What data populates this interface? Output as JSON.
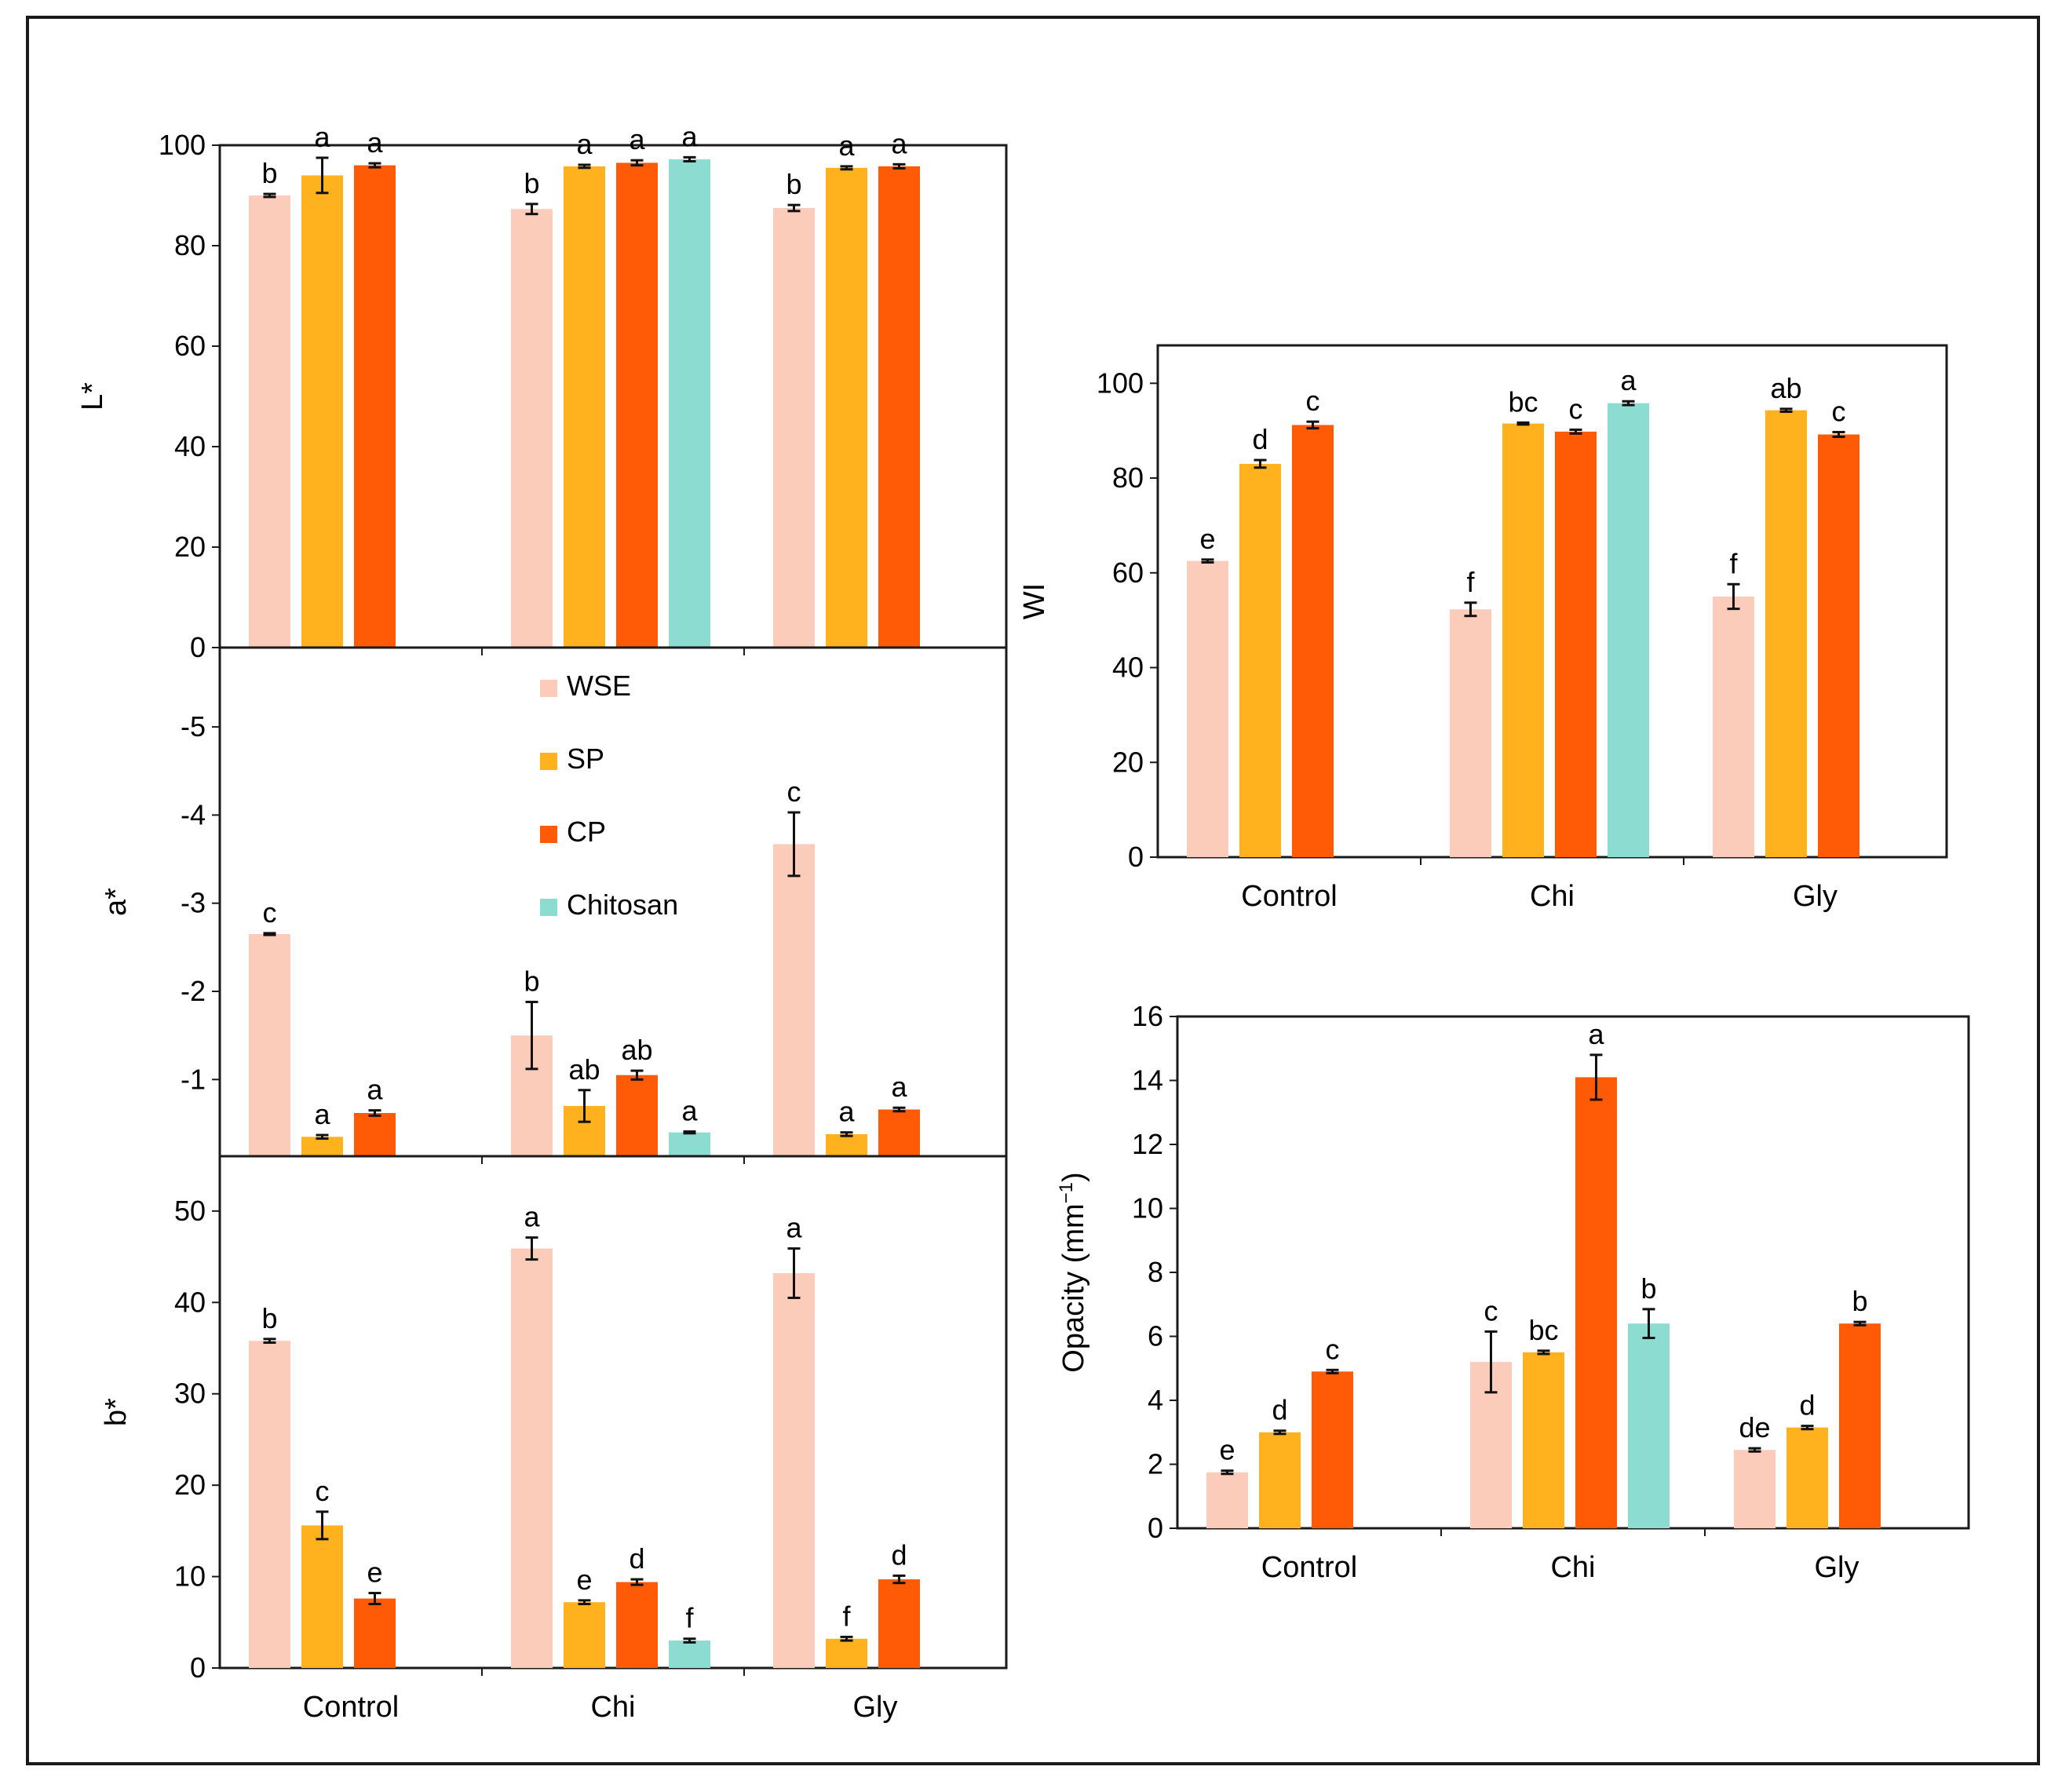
{
  "colors": {
    "WSE": "#fcccbb",
    "SP": "#ffb21e",
    "CP": "#ff5a05",
    "Chitosan": "#8ddcd2",
    "axis": "#1a1a1a"
  },
  "legend": [
    {
      "key": "WSE",
      "label": "WSE"
    },
    {
      "key": "SP",
      "label": "SP"
    },
    {
      "key": "CP",
      "label": "CP"
    },
    {
      "key": "Chitosan",
      "label": "Chitosan"
    }
  ],
  "chart_data": [
    {
      "id": "lstar",
      "type": "bar",
      "ylabel": "L*",
      "ylim": [
        0,
        100
      ],
      "yticks": [
        "0",
        "20",
        "40",
        "60",
        "80",
        "100"
      ],
      "categories": [],
      "groups": [
        {
          "name": "Control",
          "bars": [
            {
              "series": "WSE",
              "value": 90,
              "err": 0.3,
              "label": "b"
            },
            {
              "series": "SP",
              "value": 94,
              "err": 3.5,
              "label": "a"
            },
            {
              "series": "CP",
              "value": 96,
              "err": 0.4,
              "label": "a"
            }
          ]
        },
        {
          "name": "Chi",
          "bars": [
            {
              "series": "WSE",
              "value": 87.3,
              "err": 1,
              "label": "b"
            },
            {
              "series": "SP",
              "value": 95.8,
              "err": 0.3,
              "label": "a"
            },
            {
              "series": "CP",
              "value": 96.5,
              "err": 0.5,
              "label": "a"
            },
            {
              "series": "Chitosan",
              "value": 97.2,
              "err": 0.4,
              "label": "a"
            }
          ]
        },
        {
          "name": "Gly",
          "bars": [
            {
              "series": "WSE",
              "value": 87.5,
              "err": 0.6,
              "label": "b"
            },
            {
              "series": "SP",
              "value": 95.5,
              "err": 0.3,
              "label": "a"
            },
            {
              "series": "CP",
              "value": 95.8,
              "err": 0.4,
              "label": "a"
            }
          ]
        }
      ]
    },
    {
      "id": "astar",
      "type": "bar",
      "ylabel": "a*",
      "ylim": [
        -0.13,
        -5.9
      ],
      "yticks": [
        "-1",
        "-2",
        "-3",
        "-4",
        "-5"
      ],
      "categories": [],
      "groups": [
        {
          "name": "Control",
          "bars": [
            {
              "series": "WSE",
              "value": -2.65,
              "err": 0.01,
              "label": "c"
            },
            {
              "series": "SP",
              "value": -0.35,
              "err": 0.02,
              "label": "a"
            },
            {
              "series": "CP",
              "value": -0.62,
              "err": 0.03,
              "label": "a"
            }
          ]
        },
        {
          "name": "Chi",
          "bars": [
            {
              "series": "WSE",
              "value": -1.5,
              "err": 0.38,
              "label": "b"
            },
            {
              "series": "SP",
              "value": -0.7,
              "err": 0.18,
              "label": "ab"
            },
            {
              "series": "CP",
              "value": -1.05,
              "err": 0.05,
              "label": "ab"
            },
            {
              "series": "Chitosan",
              "value": -0.4,
              "err": 0.01,
              "label": "a"
            }
          ]
        },
        {
          "name": "Gly",
          "bars": [
            {
              "series": "WSE",
              "value": -3.67,
              "err": 0.36,
              "label": "c"
            },
            {
              "series": "SP",
              "value": -0.38,
              "err": 0.02,
              "label": "a"
            },
            {
              "series": "CP",
              "value": -0.66,
              "err": 0.02,
              "label": "a"
            }
          ]
        }
      ]
    },
    {
      "id": "bstar",
      "type": "bar",
      "ylabel": "b*",
      "ylim": [
        0,
        56
      ],
      "yticks": [
        "0",
        "10",
        "20",
        "30",
        "40",
        "50"
      ],
      "categories": [
        "Control",
        "Chi",
        "Gly"
      ],
      "groups": [
        {
          "name": "Control",
          "bars": [
            {
              "series": "WSE",
              "value": 35.8,
              "err": 0.2,
              "label": "b"
            },
            {
              "series": "SP",
              "value": 15.6,
              "err": 1.5,
              "label": "c"
            },
            {
              "series": "CP",
              "value": 7.6,
              "err": 0.6,
              "label": "e"
            }
          ]
        },
        {
          "name": "Chi",
          "bars": [
            {
              "series": "WSE",
              "value": 45.9,
              "err": 1.2,
              "label": "a"
            },
            {
              "series": "SP",
              "value": 7.2,
              "err": 0.2,
              "label": "e"
            },
            {
              "series": "CP",
              "value": 9.4,
              "err": 0.3,
              "label": "d"
            },
            {
              "series": "Chitosan",
              "value": 3,
              "err": 0.2,
              "label": "f"
            }
          ]
        },
        {
          "name": "Gly",
          "bars": [
            {
              "series": "WSE",
              "value": 43.2,
              "err": 2.7,
              "label": "a"
            },
            {
              "series": "SP",
              "value": 3.2,
              "err": 0.2,
              "label": "f"
            },
            {
              "series": "CP",
              "value": 9.7,
              "err": 0.4,
              "label": "d"
            }
          ]
        }
      ]
    },
    {
      "id": "wi",
      "type": "bar",
      "ylabel": "WI",
      "ylim": [
        0,
        108
      ],
      "yticks": [
        "0",
        "20",
        "40",
        "60",
        "80",
        "100"
      ],
      "categories": [
        "Control",
        "Chi",
        "Gly"
      ],
      "groups": [
        {
          "name": "Control",
          "bars": [
            {
              "series": "WSE",
              "value": 62.5,
              "err": 0.3,
              "label": "e"
            },
            {
              "series": "SP",
              "value": 83,
              "err": 0.8,
              "label": "d"
            },
            {
              "series": "CP",
              "value": 91.2,
              "err": 0.7,
              "label": "c"
            }
          ]
        },
        {
          "name": "Chi",
          "bars": [
            {
              "series": "WSE",
              "value": 52.3,
              "err": 1.4,
              "label": "f"
            },
            {
              "series": "SP",
              "value": 91.5,
              "err": 0.2,
              "label": "bc"
            },
            {
              "series": "CP",
              "value": 89.8,
              "err": 0.4,
              "label": "c"
            },
            {
              "series": "Chitosan",
              "value": 95.8,
              "err": 0.4,
              "label": "a"
            }
          ]
        },
        {
          "name": "Gly",
          "bars": [
            {
              "series": "WSE",
              "value": 55,
              "err": 2.6,
              "label": "f"
            },
            {
              "series": "SP",
              "value": 94.3,
              "err": 0.3,
              "label": "ab"
            },
            {
              "series": "CP",
              "value": 89.2,
              "err": 0.5,
              "label": "c"
            }
          ]
        }
      ]
    },
    {
      "id": "opacity",
      "type": "bar",
      "ylabel": "Opacity (mm⁻¹)",
      "ylim": [
        0,
        16
      ],
      "yticks": [
        "0",
        "2",
        "4",
        "6",
        "8",
        "10",
        "12",
        "14",
        "16"
      ],
      "categories": [
        "Control",
        "Chi",
        "Gly"
      ],
      "groups": [
        {
          "name": "Control",
          "bars": [
            {
              "series": "WSE",
              "value": 1.75,
              "err": 0.05,
              "label": "e"
            },
            {
              "series": "SP",
              "value": 3,
              "err": 0.05,
              "label": "d"
            },
            {
              "series": "CP",
              "value": 4.9,
              "err": 0.05,
              "label": "c"
            }
          ]
        },
        {
          "name": "Chi",
          "bars": [
            {
              "series": "WSE",
              "value": 5.2,
              "err": 0.95,
              "label": "c"
            },
            {
              "series": "SP",
              "value": 5.5,
              "err": 0.05,
              "label": "bc"
            },
            {
              "series": "CP",
              "value": 14.1,
              "err": 0.7,
              "label": "a"
            },
            {
              "series": "Chitosan",
              "value": 6.4,
              "err": 0.45,
              "label": "b"
            }
          ]
        },
        {
          "name": "Gly",
          "bars": [
            {
              "series": "WSE",
              "value": 2.45,
              "err": 0.05,
              "label": "de"
            },
            {
              "series": "SP",
              "value": 3.15,
              "err": 0.05,
              "label": "d"
            },
            {
              "series": "CP",
              "value": 6.4,
              "err": 0.05,
              "label": "b"
            }
          ]
        }
      ]
    }
  ]
}
